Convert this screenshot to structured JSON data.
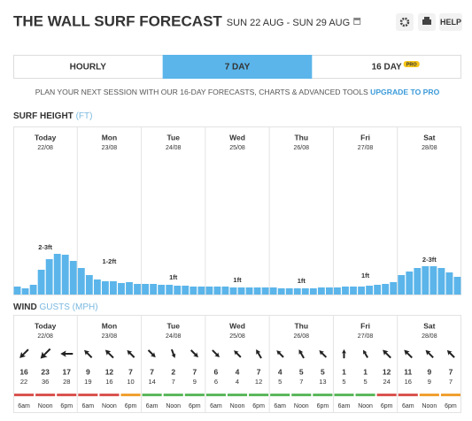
{
  "header": {
    "title": "THE WALL SURF FORECAST",
    "dates": "SUN 22 AUG - SUN 29 AUG",
    "help": "HELP"
  },
  "tabs": [
    {
      "label": "HOURLY"
    },
    {
      "label": "7 DAY",
      "active": true
    },
    {
      "label": "16 DAY",
      "badge": "PRO"
    }
  ],
  "promo": {
    "text": "PLAN YOUR NEXT SESSION WITH OUR 16-DAY FORECASTS, CHARTS & ADVANCED TOOLS",
    "link": "UPGRADE TO PRO"
  },
  "days": [
    {
      "name": "Today",
      "date": "22/08"
    },
    {
      "name": "Mon",
      "date": "23/08"
    },
    {
      "name": "Tue",
      "date": "24/08"
    },
    {
      "name": "Wed",
      "date": "25/08"
    },
    {
      "name": "Thu",
      "date": "26/08"
    },
    {
      "name": "Fri",
      "date": "27/08"
    },
    {
      "name": "Sat",
      "date": "28/08"
    }
  ],
  "chart_data": {
    "type": "bar",
    "title": "SURF HEIGHT",
    "unit": "(FT)",
    "color": "#5bb5ea",
    "values": [
      0.45,
      0.35,
      0.55,
      1.4,
      2.0,
      2.3,
      2.25,
      1.9,
      1.5,
      1.1,
      0.85,
      0.75,
      0.75,
      0.65,
      0.7,
      0.6,
      0.6,
      0.6,
      0.55,
      0.55,
      0.5,
      0.5,
      0.45,
      0.45,
      0.45,
      0.45,
      0.45,
      0.4,
      0.4,
      0.4,
      0.4,
      0.4,
      0.4,
      0.35,
      0.35,
      0.35,
      0.35,
      0.35,
      0.4,
      0.4,
      0.4,
      0.45,
      0.45,
      0.45,
      0.5,
      0.55,
      0.6,
      0.7,
      1.1,
      1.3,
      1.5,
      1.6,
      1.6,
      1.5,
      1.25,
      1.0
    ],
    "day_labels": [
      "2-3ft",
      "1-2ft",
      "1ft",
      "1ft",
      "1ft",
      "1ft",
      "2-3ft"
    ]
  },
  "wind": {
    "title": "WIND",
    "unit": "GUSTS (MPH)",
    "times": [
      "6am",
      "Noon",
      "6pm"
    ],
    "speeds": [
      16,
      23,
      17,
      9,
      12,
      7,
      7,
      2,
      7,
      6,
      4,
      7,
      4,
      5,
      5,
      1,
      1,
      12,
      11,
      9,
      7
    ],
    "gusts": [
      22,
      36,
      28,
      19,
      16,
      10,
      14,
      7,
      9,
      6,
      4,
      12,
      5,
      7,
      13,
      5,
      5,
      24,
      16,
      9,
      7
    ],
    "directions": [
      225,
      225,
      270,
      315,
      315,
      315,
      135,
      160,
      135,
      135,
      315,
      330,
      315,
      330,
      315,
      0,
      330,
      315,
      315,
      315,
      315
    ],
    "colors": [
      "#d9534f",
      "#d9534f",
      "#d9534f",
      "#d9534f",
      "#d9534f",
      "#f0a030",
      "#5cb85c",
      "#5cb85c",
      "#5cb85c",
      "#5cb85c",
      "#5cb85c",
      "#5cb85c",
      "#5cb85c",
      "#5cb85c",
      "#5cb85c",
      "#5cb85c",
      "#5cb85c",
      "#d9534f",
      "#d9534f",
      "#f0a030",
      "#f0a030"
    ]
  }
}
